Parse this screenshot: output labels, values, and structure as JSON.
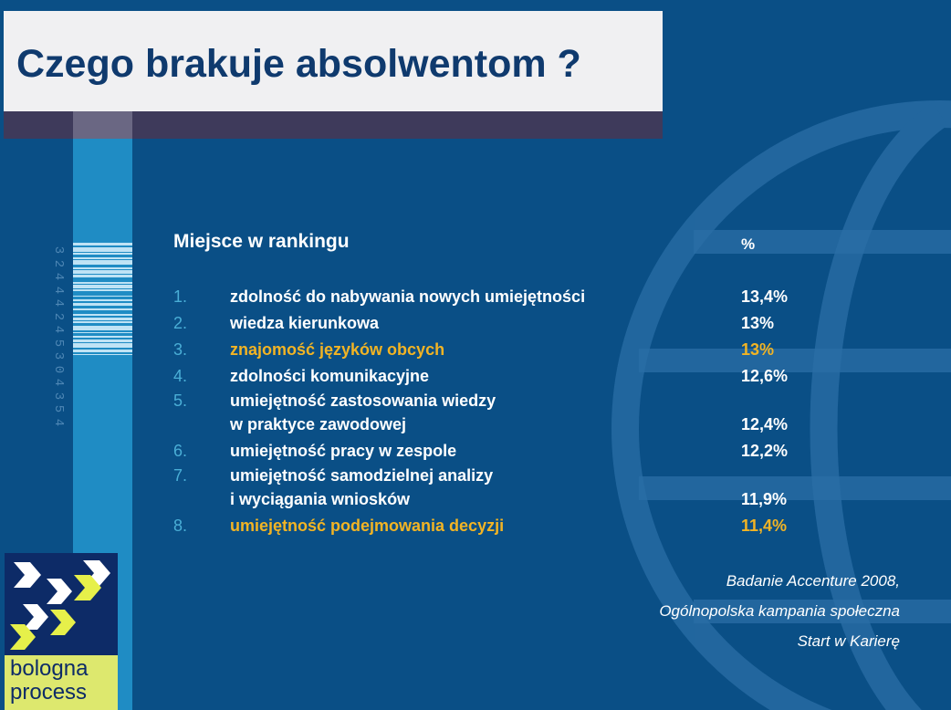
{
  "title": "Czego brakuje absolwentom ?",
  "header": {
    "rank_label": "Miejsce w rankingu",
    "percent_label": "%"
  },
  "items": [
    {
      "num": "1.",
      "label": "zdolność do nabywania nowych umiejętności",
      "value": "13,4%",
      "highlight": false
    },
    {
      "num": "2.",
      "label": "wiedza kierunkowa",
      "value": "13%",
      "highlight": false
    },
    {
      "num": "3.",
      "label": "znajomość języków obcych",
      "value": "13%",
      "highlight": true
    },
    {
      "num": "4.",
      "label": "zdolności komunikacyjne",
      "value": "12,6%",
      "highlight": false
    },
    {
      "num": "5.",
      "label": "umiejętność zastosowania wiedzy\nw praktyce zawodowej",
      "value": "12,4%",
      "highlight": false
    },
    {
      "num": "6.",
      "label": "umiejętność pracy w zespole",
      "value": "12,2%",
      "highlight": false
    },
    {
      "num": "7.",
      "label": "umiejętność samodzielnej analizy\ni wyciągania wniosków",
      "value": "11,9%",
      "highlight": false
    },
    {
      "num": "8.",
      "label": "umiejętność podejmowania decyzji",
      "value": "11,4%",
      "highlight": true
    }
  ],
  "source": {
    "line1": "Badanie Accenture 2008,",
    "line2": "Ogólnopolska kampania społeczna",
    "line3": "Start w Karierę"
  },
  "barcode_digits": "32444245304354",
  "logo": {
    "text": "bologna\nprocess",
    "icon": "bologna-process-arrows-logo"
  },
  "colors": {
    "background": "#0a4f86",
    "title_text": "#0f3a6e",
    "highlight": "#f2b424",
    "number": "#4aaed6",
    "stripe": "#1f8cc4"
  }
}
